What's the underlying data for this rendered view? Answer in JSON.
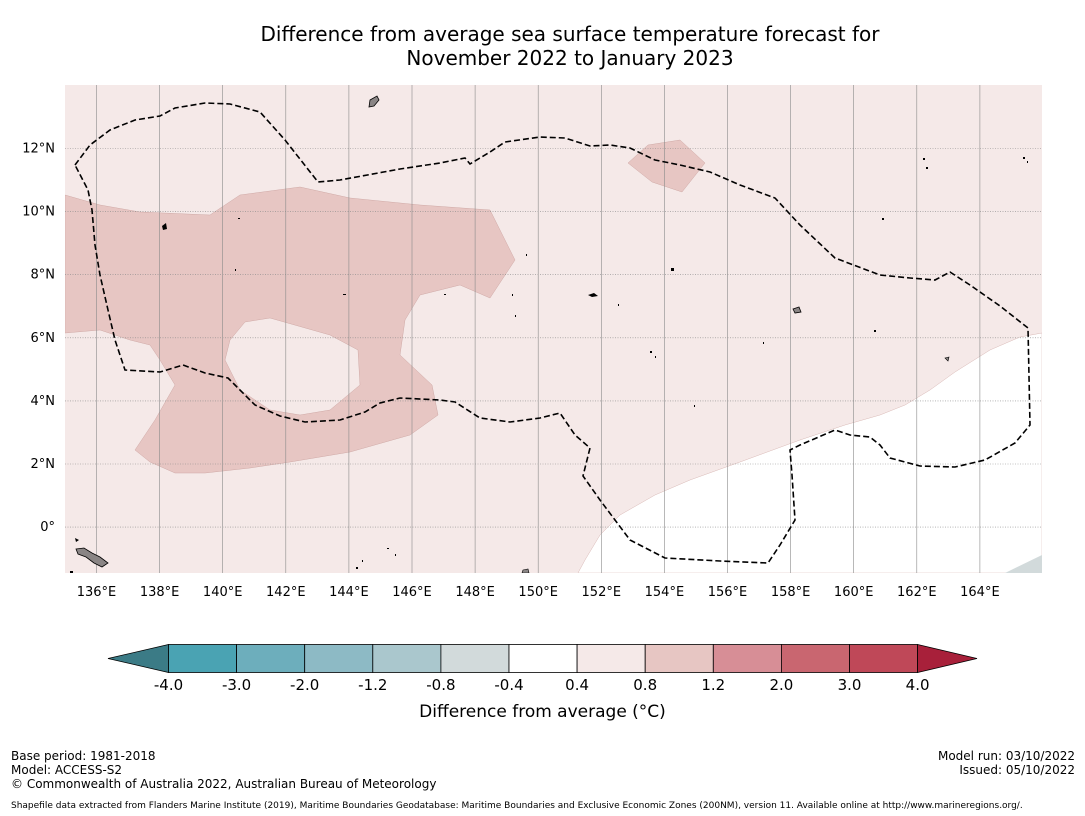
{
  "title": {
    "line1": "Difference from average sea surface temperature forecast for",
    "line2": "November 2022 to January 2023"
  },
  "map": {
    "lon_labels": [
      "136°E",
      "138°E",
      "140°E",
      "142°E",
      "144°E",
      "146°E",
      "148°E",
      "150°E",
      "152°E",
      "154°E",
      "156°E",
      "158°E",
      "160°E",
      "162°E",
      "164°E"
    ],
    "lat_labels": [
      "12°N",
      "10°N",
      "8°N",
      "6°N",
      "4°N",
      "2°N",
      "0°"
    ],
    "colors": {
      "anomaly_0_4_0_8": "#f5e9e8",
      "anomaly_0_8_1_2": "#e7c6c3",
      "land": "#8a8585",
      "eez_boundary": "#000000"
    }
  },
  "colorbar": {
    "title": "Difference from average (°C)",
    "tick_labels": [
      "-4.0",
      "-3.0",
      "-2.0",
      "-1.2",
      "-0.8",
      "-0.4",
      "0.4",
      "0.8",
      "1.2",
      "2.0",
      "3.0",
      "4.0"
    ],
    "colors": [
      "#3b7b86",
      "#4aa3b3",
      "#6daebc",
      "#8dbac5",
      "#aac7cd",
      "#d2dadb",
      "#ffffff",
      "#f5e9e8",
      "#e7c6c3",
      "#d78e96",
      "#c96670",
      "#bf4858",
      "#a8203a"
    ]
  },
  "footer": {
    "base_period": "Base period: 1981-2018",
    "model": "Model: ACCESS-S2",
    "copyright": "© Commonwealth of Australia 2022, Australian Bureau of Meteorology",
    "model_run": "Model run: 03/10/2022",
    "issued": "Issued: 05/10/2022",
    "shapefile_credit": "Shapefile data extracted from Flanders Marine Institute (2019), Maritime Boundaries Geodatabase: Maritime Boundaries and Exclusive Economic Zones (200NM), version 11. Available online at http://www.marineregions.org/."
  }
}
